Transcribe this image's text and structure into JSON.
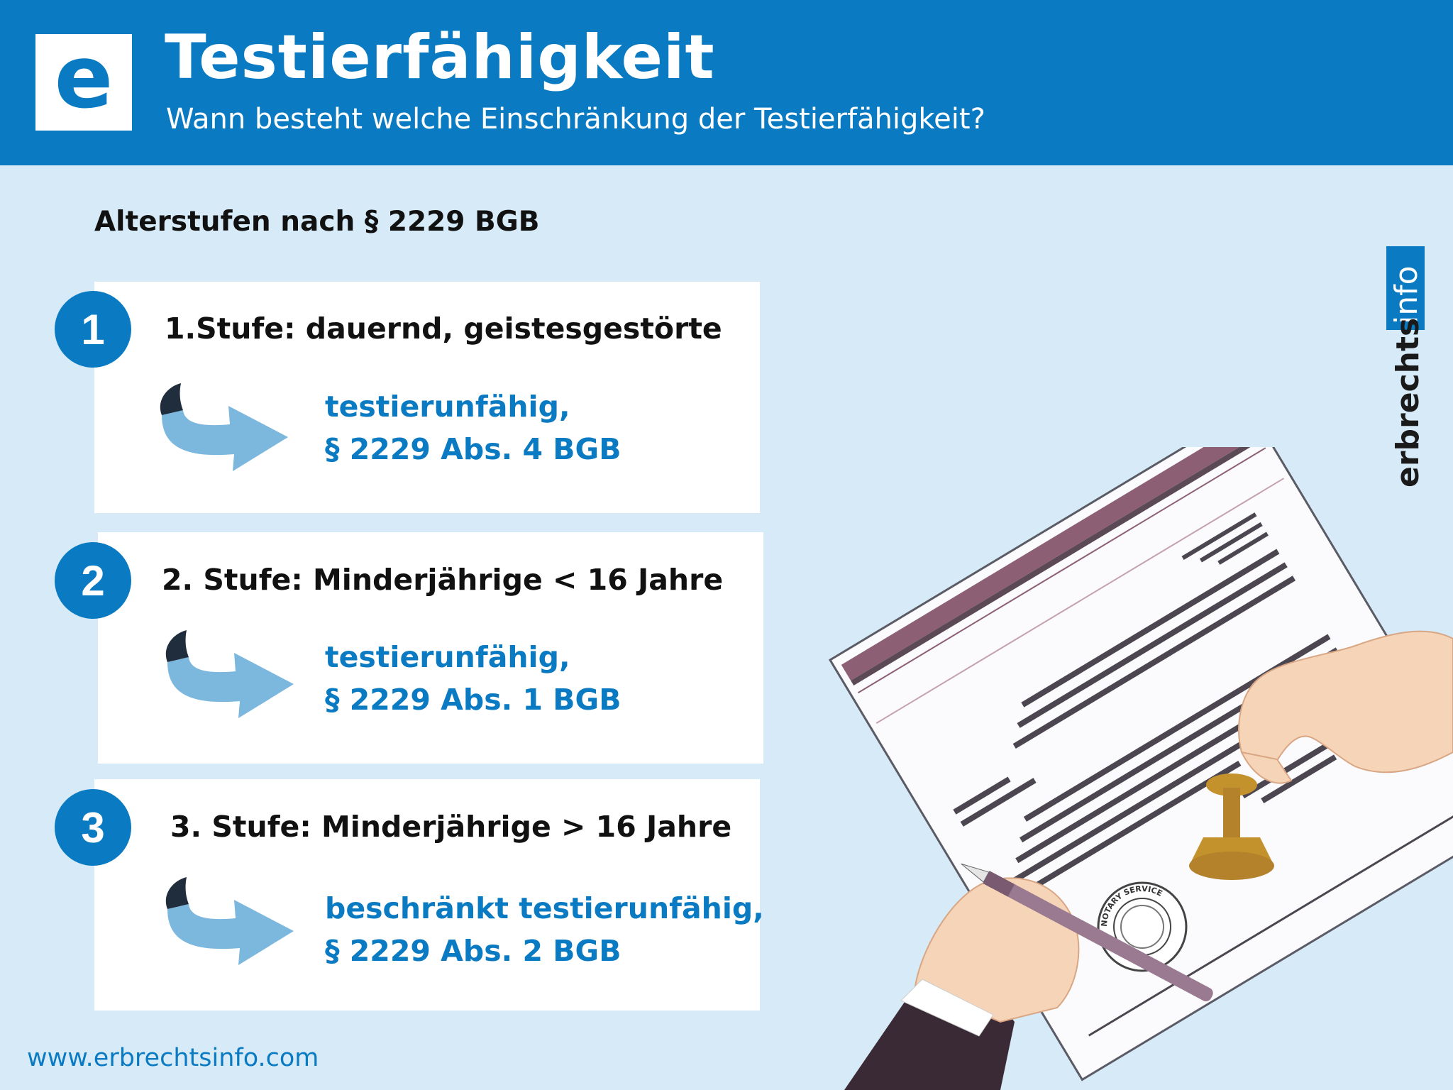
{
  "header": {
    "logo_letter": "e",
    "title": "Testierfähigkeit",
    "subtitle": "Wann besteht welche Einschränkung der Testierfähigkeit?"
  },
  "section_title": "Alterstufen nach § 2229 BGB",
  "stages": [
    {
      "number": "1",
      "label": "1.Stufe: dauernd, geistesgestörte",
      "result_line1": "testierunfähig,",
      "result_line2": "§ 2229 Abs. 4 BGB"
    },
    {
      "number": "2",
      "label": "2. Stufe: Minderjährige < 16 Jahre",
      "result_line1": "testierunfähig,",
      "result_line2": "§ 2229 Abs. 1 BGB"
    },
    {
      "number": "3",
      "label": "3. Stufe: Minderjährige > 16 Jahre",
      "result_line1": "beschränkt testierunfähig,",
      "result_line2": "§ 2229 Abs. 2 BGB"
    }
  ],
  "brand": {
    "part1": "erbrechts",
    "part2": "info"
  },
  "footer_url": "www.erbrechtsinfo.com",
  "stamp_text": "NOTARY SERVICE",
  "colors": {
    "brand_blue": "#0a7bc2",
    "background": "#d6eaf7",
    "arrow_light": "#7cb8de",
    "arrow_dark": "#1f2d3d",
    "document_stripe": "#8c5f74",
    "stamp_gold": "#c4922d"
  },
  "icons": [
    "curved-arrow-icon",
    "hand-stamp-illustration",
    "notary-seal-icon",
    "pen-icon"
  ]
}
